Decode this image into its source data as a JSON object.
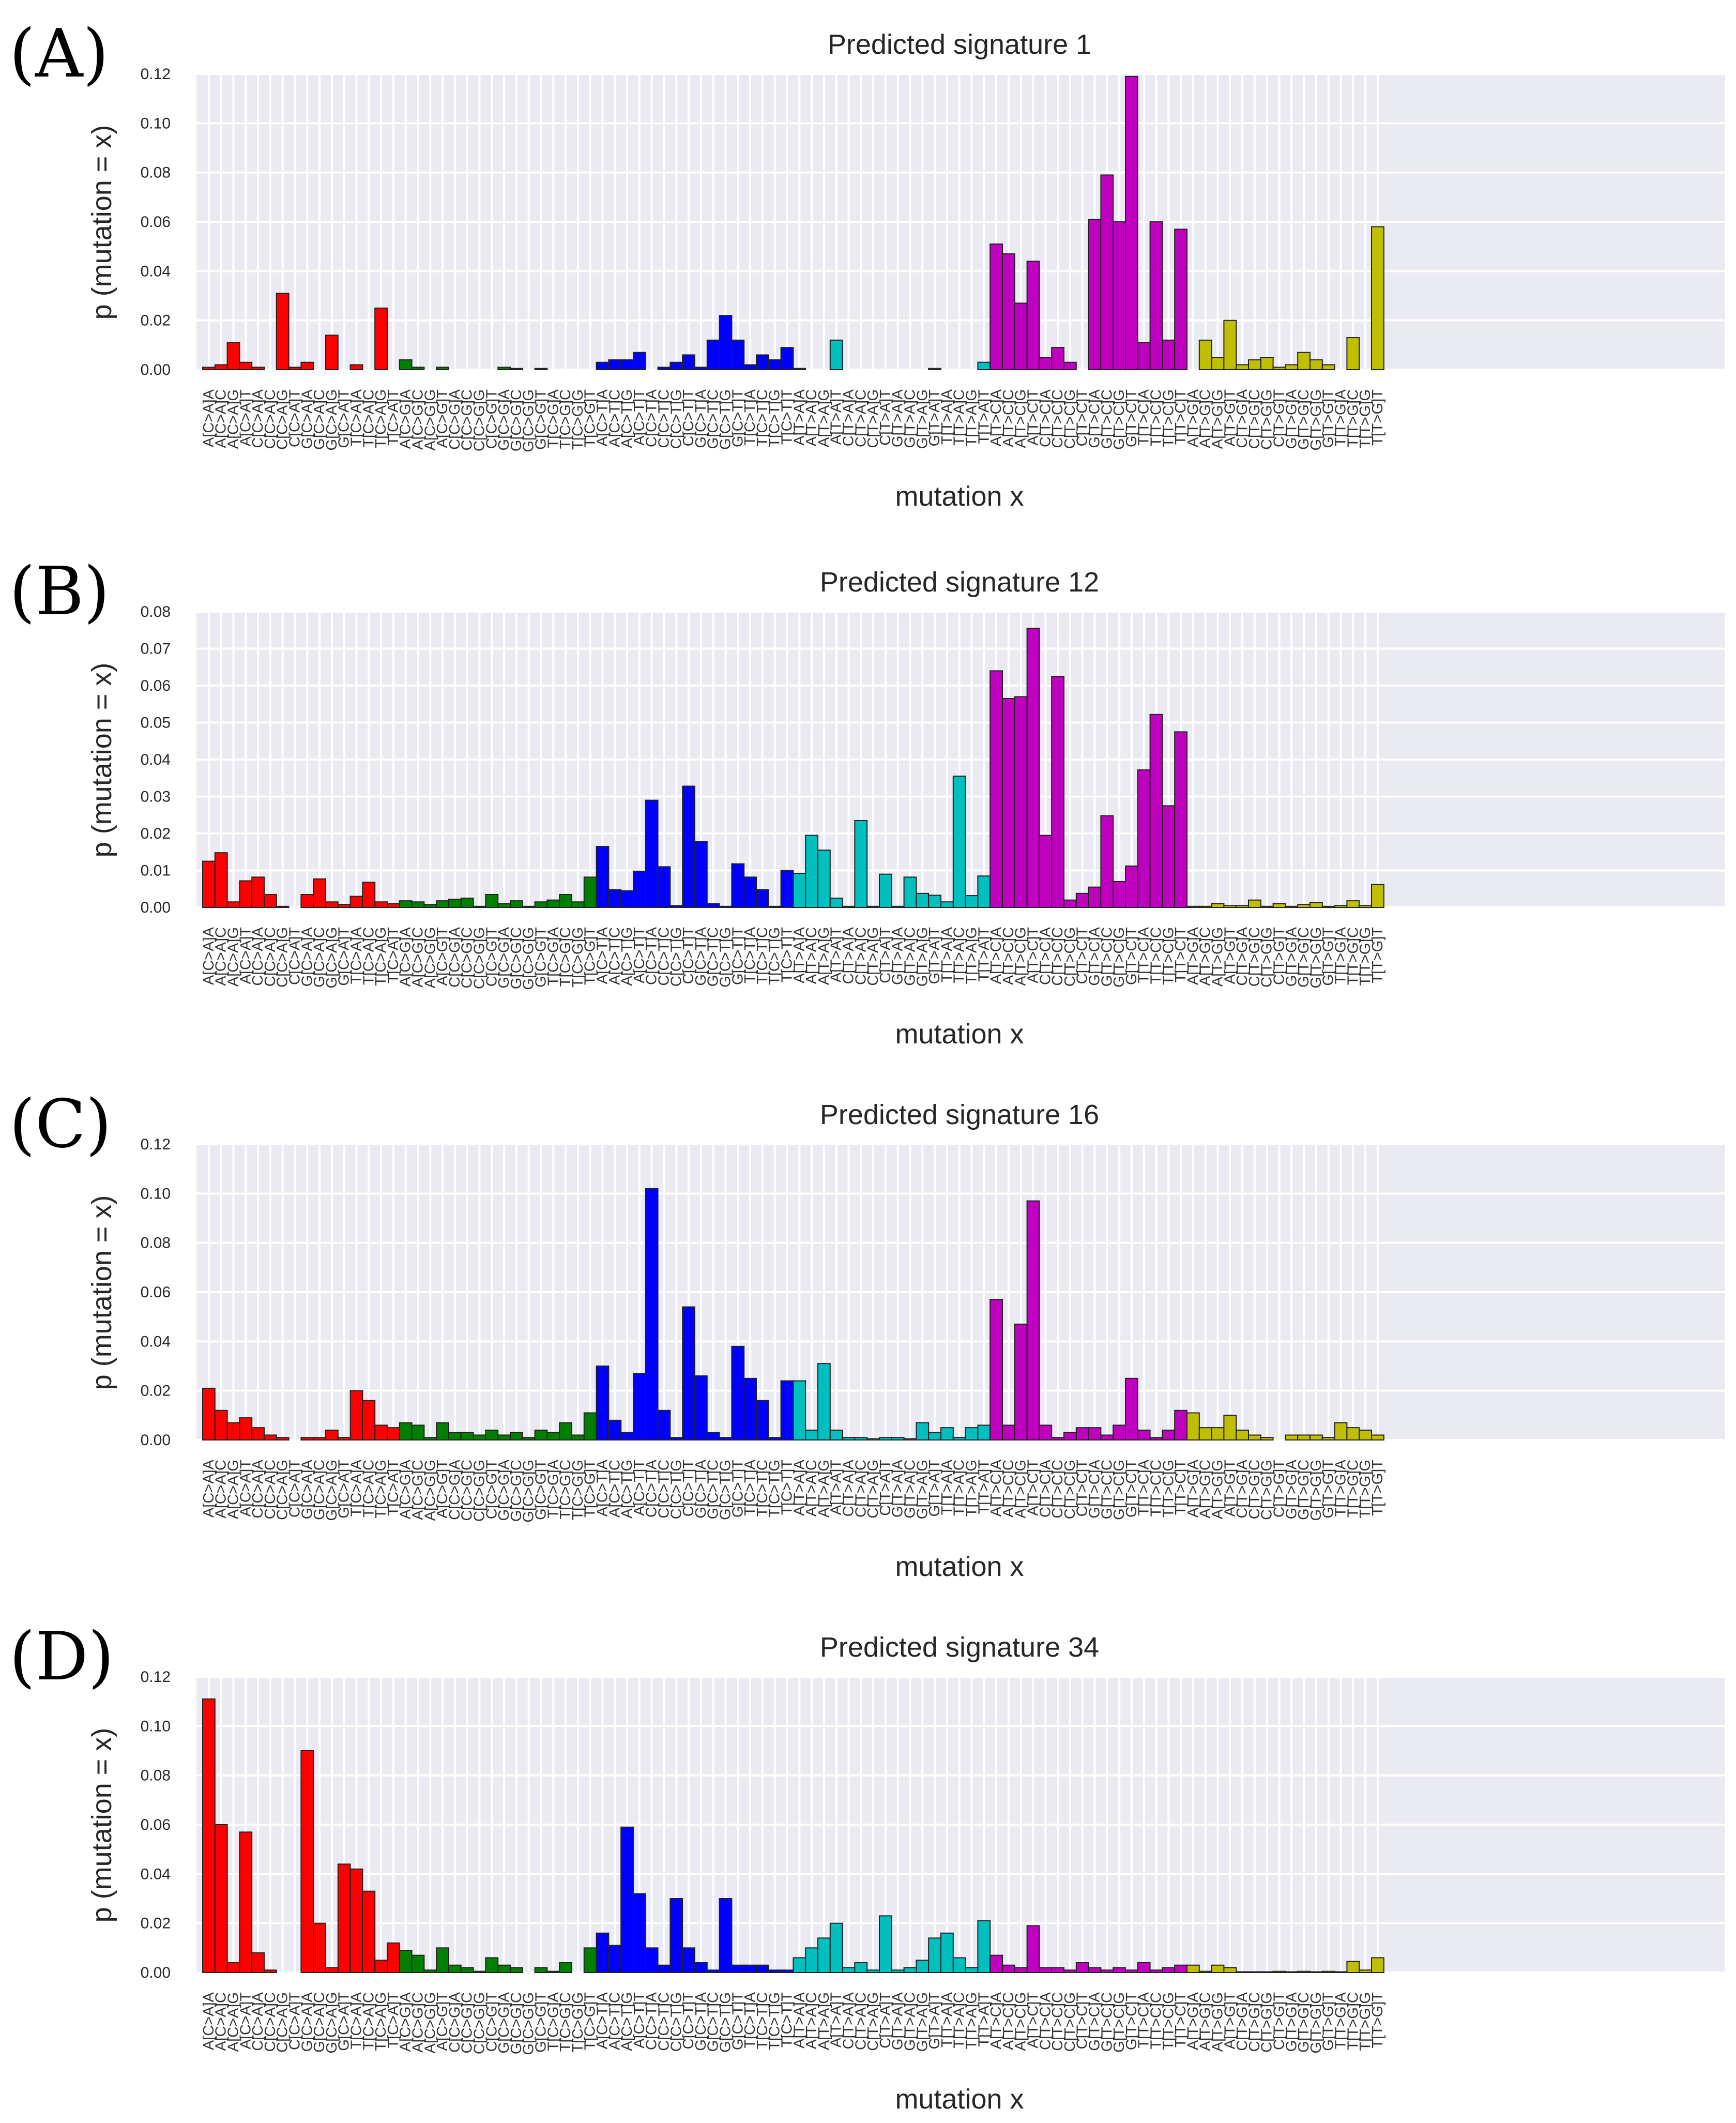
{
  "categories": [
    "A[C>A]A",
    "A[C>A]C",
    "A[C>A]G",
    "A[C>A]T",
    "C[C>A]A",
    "C[C>A]C",
    "C[C>A]G",
    "C[C>A]T",
    "G[C>A]A",
    "G[C>A]C",
    "G[C>A]G",
    "G[C>A]T",
    "T[C>A]A",
    "T[C>A]C",
    "T[C>A]G",
    "T[C>A]T",
    "A[C>G]A",
    "A[C>G]C",
    "A[C>G]G",
    "A[C>G]T",
    "C[C>G]A",
    "C[C>G]C",
    "C[C>G]G",
    "C[C>G]T",
    "G[C>G]A",
    "G[C>G]C",
    "G[C>G]G",
    "G[C>G]T",
    "T[C>G]A",
    "T[C>G]C",
    "T[C>G]G",
    "T[C>G]T",
    "A[C>T]A",
    "A[C>T]C",
    "A[C>T]G",
    "A[C>T]T",
    "C[C>T]A",
    "C[C>T]C",
    "C[C>T]G",
    "C[C>T]T",
    "G[C>T]A",
    "G[C>T]C",
    "G[C>T]G",
    "G[C>T]T",
    "T[C>T]A",
    "T[C>T]C",
    "T[C>T]G",
    "T[C>T]T",
    "A[T>A]A",
    "A[T>A]C",
    "A[T>A]G",
    "A[T>A]T",
    "C[T>A]A",
    "C[T>A]C",
    "C[T>A]G",
    "C[T>A]T",
    "G[T>A]A",
    "G[T>A]C",
    "G[T>A]G",
    "G[T>A]T",
    "T[T>A]A",
    "T[T>A]C",
    "T[T>A]G",
    "T[T>A]T",
    "A[T>C]A",
    "A[T>C]C",
    "A[T>C]G",
    "A[T>C]T",
    "C[T>C]A",
    "C[T>C]C",
    "C[T>C]G",
    "C[T>C]T",
    "G[T>C]A",
    "G[T>C]C",
    "G[T>C]G",
    "G[T>C]T",
    "T[T>C]A",
    "T[T>C]C",
    "T[T>C]G",
    "T[T>C]T",
    "A[T>G]A",
    "A[T>G]C",
    "A[T>G]G",
    "A[T>G]T",
    "C[T>G]A",
    "C[T>G]C",
    "C[T>G]G",
    "C[T>G]T",
    "G[T>G]A",
    "G[T>G]C",
    "G[T>G]G",
    "G[T>G]T",
    "T[T>G]A",
    "T[T>G]C",
    "T[T>G]G",
    "T[T>G]T"
  ],
  "group_colors": [
    "#ff0000",
    "#007f00",
    "#0000ff",
    "#00bfbf",
    "#bf00bf",
    "#bfbf00"
  ],
  "chart_data": [
    {
      "type": "bar",
      "panel_label": "(A)",
      "title": "Predicted signature 1",
      "xlabel": "mutation x",
      "ylabel": "p (mutation = x)",
      "ylim": [
        0,
        0.12
      ],
      "yticks": [
        "0.00",
        "0.02",
        "0.04",
        "0.06",
        "0.08",
        "0.10",
        "0.12"
      ],
      "values": [
        0.001,
        0.002,
        0.011,
        0.003,
        0.001,
        0,
        0.031,
        0.001,
        0.003,
        0,
        0.014,
        0,
        0.002,
        0,
        0.025,
        0,
        0.004,
        0.001,
        0,
        0.001,
        0,
        0,
        0,
        0,
        0.001,
        0.0005,
        0,
        0.0005,
        0,
        0,
        0,
        0,
        0.003,
        0.004,
        0.004,
        0.007,
        0,
        0.001,
        0.003,
        0.006,
        0.001,
        0.012,
        0.022,
        0.012,
        0.002,
        0.006,
        0.004,
        0.009,
        0.0005,
        0,
        0,
        0.012,
        0,
        0,
        0,
        0,
        0,
        0,
        0,
        0.0005,
        0,
        0,
        0,
        0.003,
        0.051,
        0.047,
        0.027,
        0.044,
        0.005,
        0.009,
        0.003,
        0,
        0.061,
        0.079,
        0.06,
        0.119,
        0.011,
        0.06,
        0.012,
        0.057,
        0,
        0.012,
        0.005,
        0.02,
        0.002,
        0.004,
        0.005,
        0.001,
        0.002,
        0.007,
        0.004,
        0.002,
        0,
        0.013,
        0,
        0.058
      ]
    },
    {
      "type": "bar",
      "panel_label": "(B)",
      "title": "Predicted signature 12",
      "xlabel": "mutation x",
      "ylabel": "p (mutation = x)",
      "ylim": [
        0,
        0.08
      ],
      "yticks": [
        "0.00",
        "0.01",
        "0.02",
        "0.03",
        "0.04",
        "0.05",
        "0.06",
        "0.07",
        "0.08"
      ],
      "values": [
        0.0125,
        0.0148,
        0.0015,
        0.0072,
        0.0082,
        0.0035,
        0.0003,
        0,
        0.0035,
        0.0077,
        0.0015,
        0.0008,
        0.003,
        0.0068,
        0.0015,
        0.001,
        0.0018,
        0.0015,
        0.0008,
        0.0018,
        0.0022,
        0.0025,
        0.0003,
        0.0035,
        0.001,
        0.0018,
        0.0003,
        0.0015,
        0.002,
        0.0035,
        0.0015,
        0.0082,
        0.0165,
        0.0048,
        0.0045,
        0.0098,
        0.029,
        0.011,
        0.0005,
        0.0328,
        0.0178,
        0.001,
        0.0003,
        0.0118,
        0.0082,
        0.0048,
        0.0003,
        0.01,
        0.0092,
        0.0195,
        0.0155,
        0.0025,
        0.0003,
        0.0235,
        0.0003,
        0.009,
        0.0003,
        0.0082,
        0.0038,
        0.0033,
        0.0015,
        0.0355,
        0.0032,
        0.0085,
        0.064,
        0.0565,
        0.057,
        0.0755,
        0.0195,
        0.0625,
        0.002,
        0.0038,
        0.0055,
        0.0248,
        0.007,
        0.0112,
        0.0372,
        0.0522,
        0.0275,
        0.0475,
        0.0003,
        0.0003,
        0.001,
        0.0005,
        0.0005,
        0.002,
        0.0003,
        0.001,
        0.0003,
        0.0008,
        0.0013,
        0.0003,
        0.0005,
        0.0018,
        0.0005,
        0.0062
      ]
    },
    {
      "type": "bar",
      "panel_label": "(C)",
      "title": "Predicted signature 16",
      "xlabel": "mutation x",
      "ylabel": "p (mutation = x)",
      "ylim": [
        0,
        0.12
      ],
      "yticks": [
        "0.00",
        "0.02",
        "0.04",
        "0.06",
        "0.08",
        "0.10",
        "0.12"
      ],
      "values": [
        0.021,
        0.012,
        0.007,
        0.009,
        0.005,
        0.002,
        0.001,
        0,
        0.001,
        0.001,
        0.004,
        0.001,
        0.02,
        0.016,
        0.006,
        0.005,
        0.007,
        0.006,
        0.001,
        0.007,
        0.003,
        0.003,
        0.002,
        0.004,
        0.002,
        0.003,
        0.001,
        0.004,
        0.003,
        0.007,
        0.002,
        0.011,
        0.03,
        0.008,
        0.003,
        0.027,
        0.102,
        0.012,
        0.001,
        0.054,
        0.026,
        0.003,
        0.001,
        0.038,
        0.025,
        0.016,
        0.001,
        0.024,
        0.024,
        0.004,
        0.031,
        0.004,
        0.001,
        0.001,
        0.0005,
        0.001,
        0.001,
        0.0005,
        0.007,
        0.003,
        0.005,
        0.001,
        0.005,
        0.006,
        0.057,
        0.006,
        0.047,
        0.097,
        0.006,
        0.001,
        0.003,
        0.005,
        0.005,
        0.002,
        0.006,
        0.025,
        0.004,
        0.001,
        0.004,
        0.012,
        0.011,
        0.005,
        0.005,
        0.01,
        0.004,
        0.002,
        0.001,
        0,
        0.002,
        0.002,
        0.002,
        0.001,
        0.007,
        0.005,
        0.004,
        0.002
      ]
    },
    {
      "type": "bar",
      "panel_label": "(D)",
      "title": "Predicted signature 34",
      "xlabel": "mutation x",
      "ylabel": "p (mutation = x)",
      "ylim": [
        0,
        0.12
      ],
      "yticks": [
        "0.00",
        "0.02",
        "0.04",
        "0.06",
        "0.08",
        "0.10",
        "0.12"
      ],
      "values": [
        0.111,
        0.06,
        0.004,
        0.057,
        0.008,
        0.001,
        0,
        0,
        0.09,
        0.02,
        0.002,
        0.044,
        0.042,
        0.033,
        0.005,
        0.012,
        0.009,
        0.007,
        0.001,
        0.01,
        0.003,
        0.002,
        0.0005,
        0.006,
        0.003,
        0.002,
        0,
        0.002,
        0.0005,
        0.004,
        0,
        0.01,
        0.016,
        0.011,
        0.059,
        0.032,
        0.01,
        0.003,
        0.03,
        0.01,
        0.004,
        0.001,
        0.03,
        0.003,
        0.003,
        0.003,
        0.001,
        0.001,
        0.006,
        0.01,
        0.014,
        0.02,
        0.002,
        0.004,
        0.001,
        0.023,
        0.001,
        0.002,
        0.005,
        0.014,
        0.016,
        0.006,
        0.002,
        0.021,
        0.007,
        0.003,
        0.002,
        0.019,
        0.002,
        0.002,
        0.001,
        0.004,
        0.002,
        0.001,
        0.002,
        0.001,
        0.004,
        0.001,
        0.002,
        0.003,
        0.003,
        0.0005,
        0.003,
        0.002,
        0.0003,
        0.0003,
        0.0003,
        0.0005,
        0.0003,
        0.0005,
        0.0003,
        0.0005,
        0.0003,
        0.0045,
        0.001,
        0.006
      ]
    }
  ]
}
